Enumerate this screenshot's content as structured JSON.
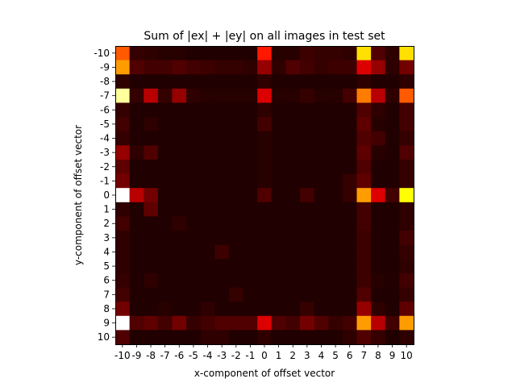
{
  "chart_data": {
    "type": "heatmap",
    "title": "Sum of |ex| + |ey| on all images in test set",
    "xlabel": "x-component of offset vector",
    "ylabel": "y-component of offset vector",
    "x": [
      -10,
      -9,
      -8,
      -7,
      -6,
      -5,
      -4,
      -3,
      -2,
      -1,
      0,
      1,
      2,
      3,
      4,
      5,
      6,
      7,
      8,
      9,
      10
    ],
    "y": [
      -10,
      -9,
      -8,
      -7,
      -6,
      -5,
      -4,
      -3,
      -2,
      -1,
      0,
      1,
      2,
      3,
      4,
      5,
      6,
      7,
      8,
      9,
      10
    ],
    "x_tick_labels": [
      "-10",
      "-9",
      "-8",
      "-7",
      "-6",
      "-5",
      "-4",
      "-3",
      "-2",
      "-1",
      "0",
      "1",
      "2",
      "3",
      "4",
      "5",
      "6",
      "7",
      "8",
      "9",
      "10"
    ],
    "y_tick_labels": [
      "-10",
      "-9",
      "-8",
      "-7",
      "-6",
      "-5",
      "-4",
      "-3",
      "-2",
      "-1",
      "0",
      "1",
      "2",
      "3",
      "4",
      "5",
      "6",
      "7",
      "8",
      "9",
      "10"
    ],
    "colormap": "hot",
    "value_range": [
      0,
      1
    ],
    "values": [
      [
        0.5,
        0.06,
        0.05,
        0.04,
        0.04,
        0.03,
        0.03,
        0.03,
        0.03,
        0.03,
        0.4,
        0.04,
        0.04,
        0.07,
        0.06,
        0.06,
        0.05,
        0.7,
        0.1,
        0.05,
        0.7
      ],
      [
        0.6,
        0.1,
        0.08,
        0.08,
        0.1,
        0.08,
        0.07,
        0.06,
        0.06,
        0.05,
        0.2,
        0.05,
        0.1,
        0.08,
        0.06,
        0.07,
        0.07,
        0.3,
        0.2,
        0.05,
        0.15
      ],
      [
        0.05,
        0.03,
        0.03,
        0.03,
        0.03,
        0.03,
        0.03,
        0.03,
        0.03,
        0.03,
        0.05,
        0.03,
        0.03,
        0.03,
        0.03,
        0.03,
        0.03,
        0.05,
        0.03,
        0.03,
        0.05
      ],
      [
        0.9,
        0.06,
        0.25,
        0.06,
        0.2,
        0.05,
        0.04,
        0.04,
        0.04,
        0.04,
        0.3,
        0.04,
        0.04,
        0.06,
        0.04,
        0.04,
        0.08,
        0.55,
        0.25,
        0.05,
        0.5
      ],
      [
        0.06,
        0.03,
        0.03,
        0.03,
        0.03,
        0.03,
        0.03,
        0.03,
        0.03,
        0.03,
        0.05,
        0.03,
        0.03,
        0.03,
        0.03,
        0.03,
        0.03,
        0.1,
        0.05,
        0.03,
        0.08
      ],
      [
        0.08,
        0.03,
        0.05,
        0.03,
        0.03,
        0.03,
        0.03,
        0.03,
        0.03,
        0.03,
        0.08,
        0.03,
        0.03,
        0.03,
        0.03,
        0.03,
        0.03,
        0.12,
        0.04,
        0.03,
        0.08
      ],
      [
        0.06,
        0.03,
        0.03,
        0.03,
        0.03,
        0.03,
        0.03,
        0.03,
        0.03,
        0.03,
        0.04,
        0.03,
        0.03,
        0.03,
        0.03,
        0.03,
        0.03,
        0.1,
        0.08,
        0.03,
        0.06
      ],
      [
        0.2,
        0.05,
        0.1,
        0.03,
        0.03,
        0.03,
        0.03,
        0.03,
        0.03,
        0.03,
        0.04,
        0.03,
        0.03,
        0.03,
        0.03,
        0.03,
        0.03,
        0.12,
        0.04,
        0.03,
        0.1
      ],
      [
        0.12,
        0.03,
        0.03,
        0.03,
        0.03,
        0.03,
        0.03,
        0.03,
        0.03,
        0.03,
        0.04,
        0.03,
        0.03,
        0.03,
        0.03,
        0.03,
        0.03,
        0.1,
        0.03,
        0.03,
        0.06
      ],
      [
        0.15,
        0.03,
        0.03,
        0.03,
        0.03,
        0.03,
        0.03,
        0.03,
        0.03,
        0.03,
        0.04,
        0.03,
        0.03,
        0.03,
        0.03,
        0.03,
        0.06,
        0.12,
        0.03,
        0.03,
        0.06
      ],
      [
        1.0,
        0.25,
        0.15,
        0.03,
        0.03,
        0.03,
        0.03,
        0.03,
        0.03,
        0.03,
        0.1,
        0.03,
        0.03,
        0.08,
        0.03,
        0.03,
        0.06,
        0.6,
        0.3,
        0.08,
        0.75
      ],
      [
        0.05,
        0.03,
        0.12,
        0.03,
        0.03,
        0.03,
        0.03,
        0.03,
        0.03,
        0.03,
        0.03,
        0.03,
        0.03,
        0.03,
        0.03,
        0.03,
        0.03,
        0.08,
        0.03,
        0.03,
        0.05
      ],
      [
        0.08,
        0.03,
        0.03,
        0.03,
        0.05,
        0.03,
        0.03,
        0.03,
        0.03,
        0.03,
        0.03,
        0.03,
        0.03,
        0.03,
        0.03,
        0.03,
        0.03,
        0.08,
        0.03,
        0.03,
        0.05
      ],
      [
        0.05,
        0.03,
        0.03,
        0.03,
        0.03,
        0.03,
        0.03,
        0.03,
        0.03,
        0.03,
        0.03,
        0.03,
        0.03,
        0.03,
        0.03,
        0.03,
        0.03,
        0.07,
        0.03,
        0.03,
        0.08
      ],
      [
        0.05,
        0.03,
        0.03,
        0.03,
        0.03,
        0.03,
        0.03,
        0.07,
        0.03,
        0.03,
        0.03,
        0.03,
        0.03,
        0.03,
        0.03,
        0.03,
        0.03,
        0.07,
        0.03,
        0.03,
        0.06
      ],
      [
        0.05,
        0.03,
        0.03,
        0.03,
        0.03,
        0.03,
        0.03,
        0.03,
        0.03,
        0.03,
        0.03,
        0.03,
        0.03,
        0.03,
        0.03,
        0.03,
        0.03,
        0.07,
        0.03,
        0.03,
        0.05
      ],
      [
        0.06,
        0.03,
        0.05,
        0.03,
        0.03,
        0.03,
        0.03,
        0.03,
        0.03,
        0.03,
        0.03,
        0.03,
        0.03,
        0.03,
        0.03,
        0.03,
        0.03,
        0.07,
        0.04,
        0.03,
        0.08
      ],
      [
        0.08,
        0.03,
        0.03,
        0.03,
        0.03,
        0.03,
        0.03,
        0.03,
        0.06,
        0.03,
        0.03,
        0.03,
        0.03,
        0.03,
        0.03,
        0.03,
        0.03,
        0.1,
        0.03,
        0.03,
        0.06
      ],
      [
        0.15,
        0.03,
        0.03,
        0.04,
        0.03,
        0.03,
        0.05,
        0.03,
        0.03,
        0.03,
        0.03,
        0.03,
        0.03,
        0.06,
        0.03,
        0.03,
        0.03,
        0.2,
        0.05,
        0.03,
        0.12
      ],
      [
        1.0,
        0.1,
        0.12,
        0.08,
        0.15,
        0.06,
        0.08,
        0.1,
        0.1,
        0.1,
        0.3,
        0.1,
        0.08,
        0.15,
        0.1,
        0.06,
        0.08,
        0.6,
        0.25,
        0.08,
        0.6
      ],
      [
        0.1,
        0.03,
        0.03,
        0.03,
        0.03,
        0.03,
        0.05,
        0.05,
        0.03,
        0.03,
        0.05,
        0.03,
        0.03,
        0.03,
        0.03,
        0.03,
        0.05,
        0.1,
        0.06,
        0.03,
        0.05
      ]
    ]
  }
}
